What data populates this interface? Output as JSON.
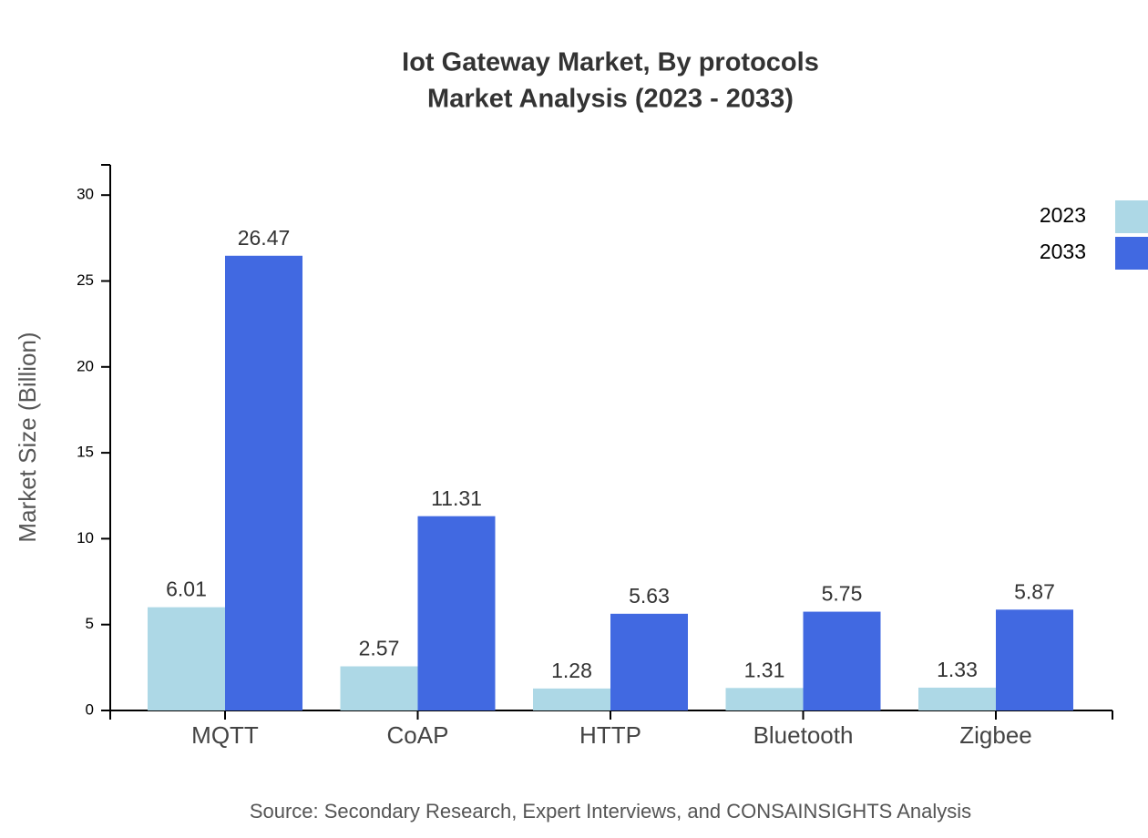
{
  "chart_data": {
    "type": "bar",
    "title": "Iot Gateway Market, By protocols",
    "subtitle": "Market Analysis (2023 - 2033)",
    "y_label": "Market Size (Billion)",
    "source": "Source: Secondary Research, Expert Interviews, and CONSAINSIGHTS Analysis",
    "categories": [
      "MQTT",
      "CoAP",
      "HTTP",
      "Bluetooth",
      "Zigbee"
    ],
    "series": [
      {
        "name": "2023",
        "color": "#add8e6",
        "values": [
          6.01,
          2.57,
          1.28,
          1.31,
          1.33
        ]
      },
      {
        "name": "2033",
        "color": "#4169e1",
        "values": [
          26.47,
          11.31,
          5.63,
          5.75,
          5.87
        ]
      }
    ],
    "ylim": [
      0,
      31.76
    ],
    "yticks": [
      0,
      5,
      10,
      15,
      20,
      25,
      30
    ],
    "grid": false,
    "legend": "top-right"
  }
}
